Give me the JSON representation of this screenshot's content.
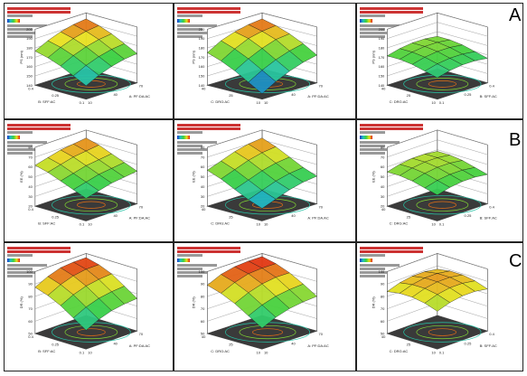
{
  "row_letters": [
    "A",
    "B",
    "C"
  ],
  "chart_data": [
    {
      "type": "surface3d",
      "row": 0,
      "col": 0,
      "zlabel": "PS (nm)",
      "xlabel": "B: SFF:AC",
      "ylabel": "A: PF:DA:AC",
      "zticks": [
        "140",
        "150",
        "160",
        "170",
        "180",
        "190",
        "200"
      ],
      "xticks": [
        "0.1",
        "0.25",
        "0.4"
      ],
      "yticks": [
        "10",
        "40",
        "70"
      ],
      "z_grid": [
        [
          150,
          158,
          166,
          172,
          176
        ],
        [
          158,
          166,
          174,
          180,
          184
        ],
        [
          164,
          172,
          180,
          186,
          190
        ],
        [
          168,
          176,
          184,
          190,
          194
        ],
        [
          170,
          178,
          186,
          192,
          196
        ]
      ]
    },
    {
      "type": "surface3d",
      "row": 0,
      "col": 1,
      "zlabel": "PS (nm)",
      "xlabel": "C: DRG:AC",
      "ylabel": "A: PF:DA:AC",
      "zticks": [
        "140",
        "150",
        "160",
        "170",
        "180",
        "190",
        "200"
      ],
      "xticks": [
        "10",
        "25",
        "40"
      ],
      "yticks": [
        "10",
        "40",
        "70"
      ],
      "z_grid": [
        [
          140,
          150,
          160,
          168,
          174
        ],
        [
          150,
          160,
          170,
          178,
          184
        ],
        [
          158,
          168,
          178,
          186,
          190
        ],
        [
          164,
          174,
          184,
          190,
          194
        ],
        [
          168,
          178,
          186,
          192,
          196
        ]
      ]
    },
    {
      "type": "surface3d",
      "row": 0,
      "col": 2,
      "zlabel": "PS (nm)",
      "xlabel": "C: DRG:AC",
      "ylabel": "B: SFF:AC",
      "zticks": [
        "140",
        "150",
        "160",
        "170",
        "180",
        "190",
        "200"
      ],
      "xticks": [
        "10",
        "25",
        "40"
      ],
      "yticks": [
        "0.1",
        "0.25",
        "0.4"
      ],
      "z_grid": [
        [
          160,
          164,
          168,
          170,
          170
        ],
        [
          164,
          168,
          172,
          174,
          174
        ],
        [
          166,
          170,
          174,
          176,
          176
        ],
        [
          166,
          170,
          174,
          176,
          176
        ],
        [
          164,
          168,
          172,
          174,
          174
        ]
      ]
    },
    {
      "type": "surface3d",
      "row": 1,
      "col": 0,
      "zlabel": "EE (%)",
      "xlabel": "B: SFF:AC",
      "ylabel": "A: PF:DA:AC",
      "zticks": [
        "20",
        "30",
        "40",
        "50",
        "60",
        "70",
        "80"
      ],
      "xticks": [
        "0.1",
        "0.25",
        "0.4"
      ],
      "yticks": [
        "10",
        "40",
        "70"
      ],
      "z_grid": [
        [
          40,
          46,
          52,
          58,
          62
        ],
        [
          44,
          50,
          56,
          62,
          66
        ],
        [
          48,
          54,
          60,
          66,
          70
        ],
        [
          50,
          56,
          62,
          68,
          72
        ],
        [
          52,
          58,
          64,
          70,
          74
        ]
      ]
    },
    {
      "type": "surface3d",
      "row": 1,
      "col": 1,
      "zlabel": "EE (%)",
      "xlabel": "C: DRG:AC",
      "ylabel": "A: PF:DA:AC",
      "zticks": [
        "20",
        "30",
        "40",
        "50",
        "60",
        "70",
        "80"
      ],
      "xticks": [
        "10",
        "25",
        "40"
      ],
      "yticks": [
        "10",
        "40",
        "70"
      ],
      "z_grid": [
        [
          28,
          34,
          42,
          50,
          56
        ],
        [
          34,
          40,
          48,
          56,
          62
        ],
        [
          40,
          46,
          54,
          62,
          68
        ],
        [
          44,
          50,
          58,
          66,
          72
        ],
        [
          46,
          52,
          60,
          68,
          74
        ]
      ]
    },
    {
      "type": "surface3d",
      "row": 1,
      "col": 2,
      "zlabel": "EE (%)",
      "xlabel": "C: DRG:AC",
      "ylabel": "B: SFF:AC",
      "zticks": [
        "20",
        "30",
        "40",
        "50",
        "60",
        "70",
        "80"
      ],
      "xticks": [
        "10",
        "25",
        "40"
      ],
      "yticks": [
        "0.1",
        "0.25",
        "0.4"
      ],
      "z_grid": [
        [
          44,
          48,
          52,
          54,
          54
        ],
        [
          48,
          52,
          56,
          58,
          58
        ],
        [
          50,
          54,
          58,
          60,
          60
        ],
        [
          50,
          54,
          58,
          60,
          60
        ],
        [
          48,
          52,
          56,
          58,
          58
        ]
      ]
    },
    {
      "type": "surface3d",
      "row": 2,
      "col": 0,
      "zlabel": "DR (%)",
      "xlabel": "B: SFF:AC",
      "ylabel": "A: PF:DA:AC",
      "zticks": [
        "50",
        "60",
        "70",
        "80",
        "90",
        "100"
      ],
      "xticks": [
        "0.1",
        "0.25",
        "0.4"
      ],
      "yticks": [
        "10",
        "40",
        "70"
      ],
      "z_grid": [
        [
          62,
          70,
          78,
          84,
          88
        ],
        [
          68,
          76,
          84,
          90,
          94
        ],
        [
          72,
          80,
          88,
          94,
          98
        ],
        [
          74,
          82,
          90,
          96,
          99
        ],
        [
          75,
          83,
          91,
          96,
          99
        ]
      ]
    },
    {
      "type": "surface3d",
      "row": 2,
      "col": 1,
      "zlabel": "DR (%)",
      "xlabel": "C: DRG:AC",
      "ylabel": "A: PF:DA:AC",
      "zticks": [
        "50",
        "60",
        "70",
        "80",
        "90",
        "100"
      ],
      "xticks": [
        "10",
        "25",
        "40"
      ],
      "yticks": [
        "10",
        "40",
        "70"
      ],
      "z_grid": [
        [
          64,
          72,
          80,
          86,
          90
        ],
        [
          70,
          78,
          86,
          92,
          96
        ],
        [
          74,
          82,
          90,
          96,
          99
        ],
        [
          76,
          84,
          92,
          97,
          100
        ],
        [
          77,
          85,
          92,
          97,
          100
        ]
      ]
    },
    {
      "type": "surface3d",
      "row": 2,
      "col": 2,
      "zlabel": "DR (%)",
      "xlabel": "C: DRG:AC",
      "ylabel": "B: SFF:AC",
      "zticks": [
        "50",
        "60",
        "70",
        "80",
        "90",
        "100"
      ],
      "xticks": [
        "10",
        "25",
        "40"
      ],
      "yticks": [
        "0.1",
        "0.25",
        "0.4"
      ],
      "z_grid": [
        [
          80,
          84,
          86,
          86,
          84
        ],
        [
          84,
          88,
          90,
          90,
          88
        ],
        [
          86,
          90,
          92,
          92,
          90
        ],
        [
          86,
          90,
          92,
          92,
          90
        ],
        [
          84,
          88,
          90,
          90,
          88
        ]
      ]
    }
  ]
}
